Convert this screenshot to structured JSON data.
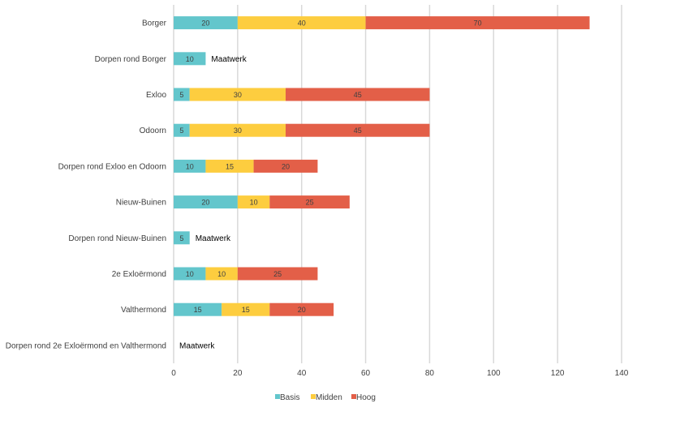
{
  "chart_data": {
    "type": "bar",
    "orientation": "horizontal",
    "stacked": true,
    "categories": [
      "Borger",
      "Dorpen rond Borger",
      "Exloo",
      "Odoorn",
      "Dorpen rond Exloo en Odoorn",
      "Nieuw-Buinen",
      "Dorpen rond Nieuw-Buinen",
      "2e Exloërmond",
      "Valthermond",
      "Dorpen rond 2e Exloërmond en Valthermond"
    ],
    "series": [
      {
        "name": "Basis",
        "color": "#63c6cc",
        "values": [
          20,
          10,
          5,
          5,
          10,
          20,
          5,
          10,
          15,
          0
        ]
      },
      {
        "name": "Midden",
        "color": "#fdcd3f",
        "values": [
          40,
          0,
          30,
          30,
          15,
          10,
          0,
          10,
          15,
          0
        ]
      },
      {
        "name": "Hoog",
        "color": "#e35f48",
        "values": [
          70,
          0,
          45,
          45,
          20,
          25,
          0,
          25,
          20,
          0
        ]
      }
    ],
    "annotations": [
      "",
      "Maatwerk",
      "",
      "",
      "",
      "",
      "Maatwerk",
      "",
      "",
      "Maatwerk"
    ],
    "xlim": [
      0,
      140
    ],
    "xticks": [
      "0",
      "20",
      "40",
      "60",
      "80",
      "100",
      "120",
      "140"
    ],
    "grid": true,
    "legend_position": "bottom"
  }
}
